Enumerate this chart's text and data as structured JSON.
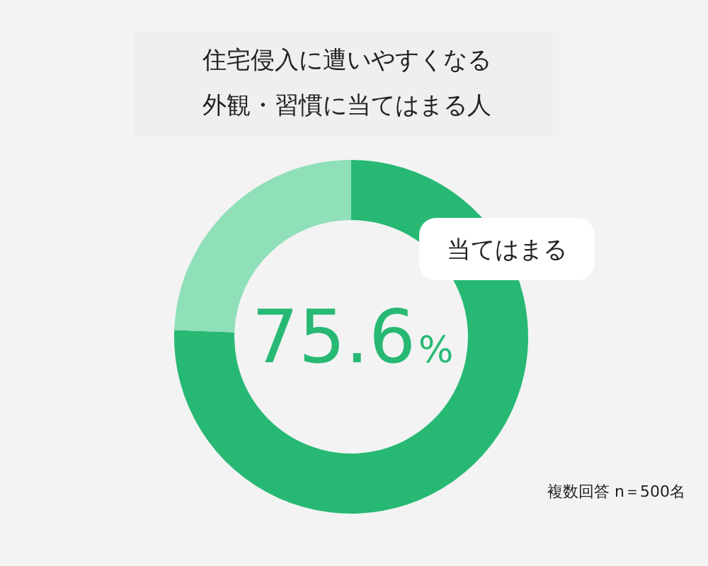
{
  "chart_data": {
    "type": "donut",
    "title": "住宅侵入に遭いやすくなる外観・習慣に当てはまる人",
    "categories": [
      "当てはまる",
      null
    ],
    "values": [
      75.6,
      24.4
    ],
    "colors": [
      "#27b974",
      "#8fdfb8"
    ],
    "value_labels": [
      "75.6%",
      null
    ],
    "legend": false,
    "annotations": [
      "複数回答 n＝500名"
    ]
  }
}
